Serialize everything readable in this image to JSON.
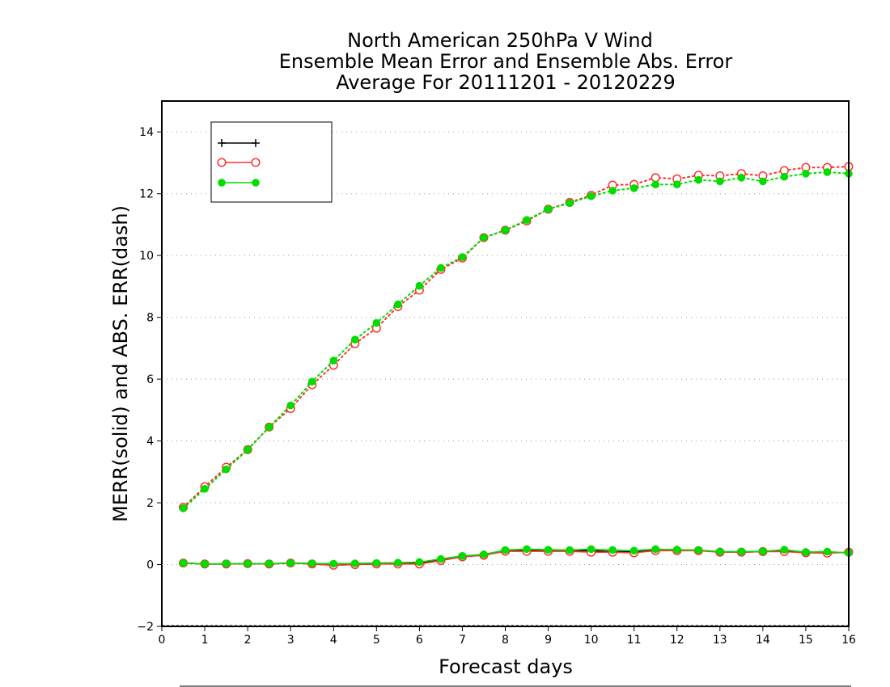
{
  "chart_data": {
    "type": "line",
    "title_lines": [
      "North American 250hPa V Wind",
      "Ensemble Mean Error and Ensemble Abs. Error",
      "Average For 20111201 - 20120229"
    ],
    "xlabel": "Forecast days",
    "ylabel": "MERR(solid) and ABS. ERR(dash)",
    "xlim": [
      0,
      16
    ],
    "ylim": [
      -2,
      15
    ],
    "x_ticks": [
      0,
      1,
      2,
      3,
      4,
      5,
      6,
      7,
      8,
      9,
      10,
      11,
      12,
      13,
      14,
      15,
      16
    ],
    "y_ticks": [
      -2,
      0,
      2,
      4,
      6,
      8,
      10,
      12,
      14
    ],
    "grid": "horizontal dotted",
    "legend": {
      "position": "top-left",
      "entries": [
        "",
        "",
        ""
      ]
    },
    "x": [
      0.5,
      1,
      1.5,
      2,
      2.5,
      3,
      3.5,
      4,
      4.5,
      5,
      5.5,
      6,
      6.5,
      7,
      7.5,
      8,
      8.5,
      9,
      9.5,
      10,
      10.5,
      11,
      11.5,
      12,
      12.5,
      13,
      13.5,
      14,
      14.5,
      15,
      15.5,
      16
    ],
    "series": [
      {
        "style": "solid",
        "marker": "plus",
        "color": "#000000",
        "values": [
          0.05,
          0.02,
          0.02,
          0.03,
          0.02,
          0.05,
          0.02,
          -0.02,
          0.0,
          0.02,
          0.05,
          0.05,
          0.15,
          0.25,
          0.32,
          0.45,
          0.45,
          0.45,
          0.45,
          0.45,
          0.42,
          0.42,
          0.48,
          0.48,
          0.45,
          0.42,
          0.4,
          0.42,
          0.45,
          0.4,
          0.4,
          0.38
        ]
      },
      {
        "style": "solid",
        "marker": "open-circle",
        "color": "#ff3030",
        "values": [
          0.05,
          0.02,
          0.02,
          0.03,
          0.02,
          0.05,
          0.02,
          -0.02,
          0.0,
          0.02,
          0.02,
          0.02,
          0.13,
          0.25,
          0.3,
          0.43,
          0.43,
          0.43,
          0.43,
          0.4,
          0.4,
          0.38,
          0.45,
          0.45,
          0.45,
          0.4,
          0.4,
          0.42,
          0.42,
          0.38,
          0.37,
          0.4
        ]
      },
      {
        "style": "solid",
        "marker": "filled-circle",
        "color": "#00dd00",
        "values": [
          0.05,
          0.02,
          0.03,
          0.03,
          0.03,
          0.05,
          0.04,
          0.03,
          0.04,
          0.05,
          0.06,
          0.08,
          0.18,
          0.28,
          0.33,
          0.47,
          0.5,
          0.48,
          0.47,
          0.5,
          0.47,
          0.45,
          0.5,
          0.48,
          0.47,
          0.42,
          0.42,
          0.43,
          0.48,
          0.4,
          0.42,
          0.38
        ]
      },
      {
        "style": "dotted",
        "marker": "open-circle",
        "color": "#ff3030",
        "values": [
          1.85,
          2.52,
          3.15,
          3.72,
          4.45,
          5.05,
          5.82,
          6.45,
          7.15,
          7.65,
          8.35,
          8.88,
          9.55,
          9.92,
          10.58,
          10.82,
          11.12,
          11.5,
          11.72,
          11.95,
          12.28,
          12.3,
          12.52,
          12.48,
          12.6,
          12.58,
          12.65,
          12.58,
          12.75,
          12.85,
          12.85,
          12.88
        ]
      },
      {
        "style": "dotted",
        "marker": "filled-circle",
        "color": "#00dd00",
        "values": [
          1.82,
          2.45,
          3.08,
          3.72,
          4.45,
          5.15,
          5.92,
          6.6,
          7.28,
          7.82,
          8.42,
          9.02,
          9.6,
          9.95,
          10.58,
          10.82,
          11.15,
          11.5,
          11.7,
          11.92,
          12.1,
          12.18,
          12.3,
          12.3,
          12.45,
          12.4,
          12.52,
          12.4,
          12.55,
          12.65,
          12.7,
          12.65
        ]
      }
    ]
  }
}
